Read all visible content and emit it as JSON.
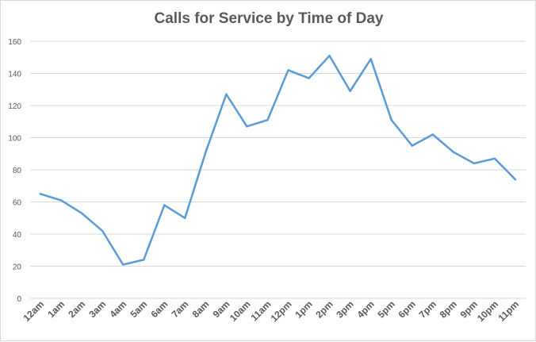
{
  "chart_data": {
    "type": "line",
    "title": "Calls for Service by Time of Day",
    "xlabel": "",
    "ylabel": "",
    "ylim": [
      0,
      160
    ],
    "yticks": [
      0,
      20,
      40,
      60,
      80,
      100,
      120,
      140,
      160
    ],
    "grid": true,
    "legend": "none",
    "line_color": "#5b9bd5",
    "categories": [
      "12am",
      "1am",
      "2am",
      "3am",
      "4am",
      "5am",
      "6am",
      "7am",
      "8am",
      "9am",
      "10am",
      "11am",
      "12pm",
      "1pm",
      "2pm",
      "3pm",
      "4pm",
      "5pm",
      "6pm",
      "7pm",
      "8pm",
      "9pm",
      "10pm",
      "11pm"
    ],
    "values": [
      65,
      61,
      53,
      42,
      21,
      24,
      58,
      50,
      91,
      127,
      107,
      111,
      142,
      137,
      151,
      129,
      149,
      111,
      95,
      102,
      91,
      84,
      87,
      74
    ]
  }
}
